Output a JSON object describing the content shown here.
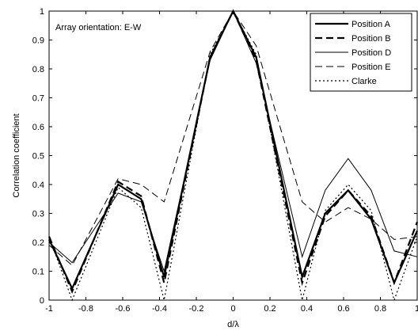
{
  "chart_data": {
    "type": "line",
    "annotation": "Array orientation: E-W",
    "xlabel": "d/λ",
    "ylabel": "Correlation coefficient",
    "xlim": [
      -1,
      1
    ],
    "ylim": [
      0,
      1
    ],
    "xticks": [
      -1,
      -0.8,
      -0.6,
      -0.4,
      -0.2,
      0,
      0.2,
      0.4,
      0.6,
      0.8,
      1
    ],
    "xtick_labels": [
      "-1",
      "-0.8",
      "-0.6",
      "-0.4",
      "-0.2",
      "0",
      "0.2",
      "0.4",
      "0.6",
      "0.8",
      "1"
    ],
    "yticks": [
      0,
      0.1,
      0.2,
      0.3,
      0.4,
      0.5,
      0.6,
      0.7,
      0.8,
      0.9,
      1
    ],
    "ytick_labels": [
      "0",
      "0.1",
      "0.2",
      "0.3",
      "0.4",
      "0.5",
      "0.6",
      "0.7",
      "0.8",
      "0.9",
      "1"
    ],
    "grid": false,
    "legend_position": "top-right",
    "x": [
      -1,
      -0.875,
      -0.625,
      -0.5,
      -0.375,
      -0.125,
      0,
      0.125,
      0.375,
      0.5,
      0.625,
      0.75,
      0.875,
      1
    ],
    "series": [
      {
        "name": "Position A",
        "style": "solid",
        "width": 2.2,
        "color": "#000000",
        "values": [
          0.21,
          0.04,
          0.4,
          0.35,
          0.08,
          0.84,
          1.0,
          0.84,
          0.08,
          0.3,
          0.38,
          0.28,
          0.06,
          0.24
        ]
      },
      {
        "name": "Position B",
        "style": "dashed",
        "width": 2.2,
        "color": "#000000",
        "values": [
          0.22,
          0.03,
          0.41,
          0.36,
          0.06,
          0.84,
          1.0,
          0.83,
          0.06,
          0.29,
          0.38,
          0.29,
          0.06,
          0.27
        ]
      },
      {
        "name": "Position D",
        "style": "solid",
        "width": 1.0,
        "color": "#000000",
        "values": [
          0.2,
          0.13,
          0.37,
          0.34,
          0.1,
          0.83,
          1.0,
          0.82,
          0.15,
          0.38,
          0.49,
          0.38,
          0.17,
          0.15
        ]
      },
      {
        "name": "Position E",
        "style": "dashed",
        "width": 1.0,
        "color": "#000000",
        "values": [
          0.19,
          0.12,
          0.42,
          0.4,
          0.34,
          0.86,
          1.0,
          0.88,
          0.34,
          0.27,
          0.32,
          0.28,
          0.21,
          0.22
        ]
      },
      {
        "name": "Clarke",
        "style": "dotted",
        "width": 1.2,
        "color": "#000000",
        "values": [
          0.22,
          0.0,
          0.39,
          0.32,
          0.0,
          0.85,
          1.0,
          0.85,
          0.0,
          0.31,
          0.4,
          0.31,
          0.0,
          0.22
        ]
      }
    ]
  }
}
